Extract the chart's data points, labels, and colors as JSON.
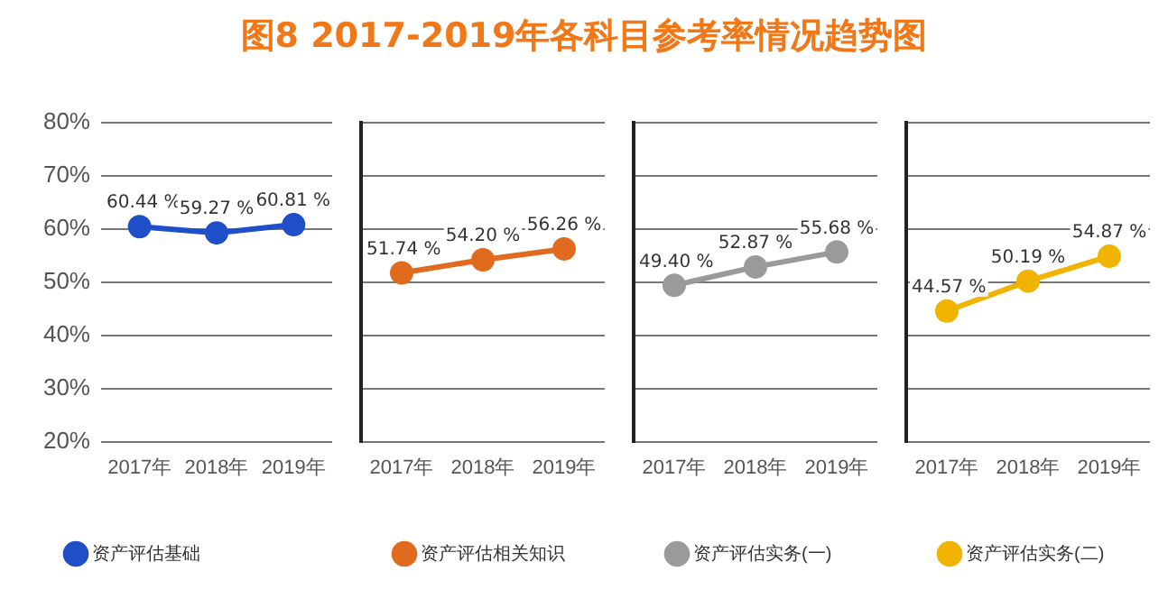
{
  "chart_data": [
    {
      "type": "line",
      "title": "图8  2017-2019年各科目参考率情况趋势图",
      "categories": [
        "2017年",
        "2018年",
        "2019年"
      ],
      "series": [
        {
          "name": "资产评估基础",
          "color": "#1f4fc8",
          "values": [
            60.44,
            59.27,
            60.81
          ],
          "value_labels": [
            "60.44 %",
            "59.27 %",
            "60.81 %"
          ]
        }
      ],
      "ylim": [
        20,
        80
      ],
      "yticks": [
        {
          "value": 20,
          "label": "20%"
        },
        {
          "value": 30,
          "label": "30%"
        },
        {
          "value": 40,
          "label": "40%"
        },
        {
          "value": 50,
          "label": "50%"
        },
        {
          "value": 60,
          "label": "60%"
        },
        {
          "value": 70,
          "label": "70%"
        },
        {
          "value": 80,
          "label": "80%"
        }
      ],
      "grid": "y",
      "legend": "bottom left",
      "marker": "circle",
      "line_style": "solid"
    },
    {
      "type": "line",
      "categories": [
        "2017年",
        "2018年",
        "2019年"
      ],
      "series": [
        {
          "name": "资产评估相关知识",
          "color": "#e06a1e",
          "values": [
            51.74,
            54.2,
            56.26
          ],
          "value_labels": [
            "51.74 %",
            "54.20 %",
            "56.26 %"
          ]
        }
      ],
      "ylim": [
        20,
        80
      ],
      "yticks": [
        20,
        30,
        40,
        50,
        60,
        70,
        80
      ],
      "grid": "y",
      "legend": "bottom left",
      "marker": "circle",
      "line_style": "solid",
      "tick_labels": "x"
    },
    {
      "type": "line",
      "categories": [
        "2017年",
        "2018年",
        "2019年"
      ],
      "series": [
        {
          "name": "资产评估实务(一)",
          "color": "#9a9a9a",
          "values": [
            49.4,
            52.87,
            55.68
          ],
          "value_labels": [
            "49.40 %",
            "52.87 %",
            "55.68 %"
          ]
        }
      ],
      "ylim": [
        20,
        80
      ],
      "yticks": [
        20,
        30,
        40,
        50,
        60,
        70,
        80
      ],
      "grid": "y",
      "legend": "bottom left",
      "marker": "circle",
      "line_style": "solid",
      "tick_labels": "x"
    },
    {
      "type": "line",
      "categories": [
        "2017年",
        "2018年",
        "2019年"
      ],
      "series": [
        {
          "name": "资产评估实务(二)",
          "color": "#f0b400",
          "values": [
            44.57,
            50.19,
            54.87
          ],
          "value_labels": [
            "44.57 %",
            "50.19 %",
            "54.87 %"
          ]
        }
      ],
      "ylim": [
        20,
        80
      ],
      "yticks": [
        20,
        30,
        40,
        50,
        60,
        70,
        80
      ],
      "grid": "y",
      "legend": "bottom left",
      "marker": "circle",
      "line_style": "solid",
      "tick_labels": "x"
    }
  ]
}
